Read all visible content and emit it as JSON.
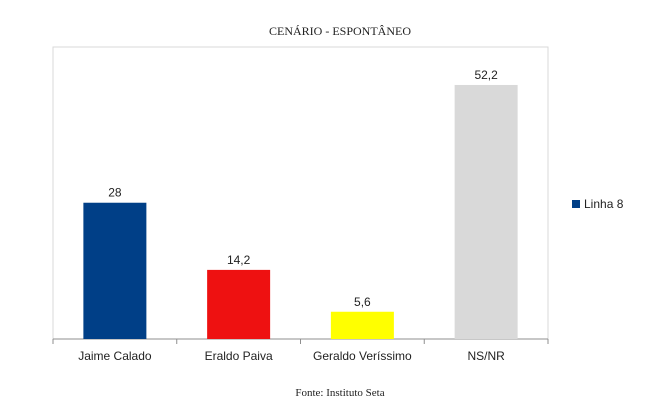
{
  "chart_data": {
    "type": "bar",
    "title": "CENÁRIO - ESPONTÂNEO",
    "categories": [
      "Jaime Calado",
      "Eraldo Paiva",
      "Geraldo Veríssimo",
      "NS/NR"
    ],
    "values": [
      28,
      14.2,
      5.6,
      52.2
    ],
    "value_labels": [
      "28",
      "14,2",
      "5,6",
      "52,2"
    ],
    "bar_colors": [
      "#003f87",
      "#ee1111",
      "#ffff00",
      "#d9d9d9"
    ],
    "series": [
      {
        "name": "Linha 8",
        "values": [
          28,
          14.2,
          5.6,
          52.2
        ],
        "legend_color": "#003f87"
      }
    ],
    "xlabel": "",
    "ylabel": "",
    "ylim": [
      0,
      60
    ],
    "grid": false,
    "legend_position": "right",
    "footer": "Fonte: Instituto Seta"
  }
}
